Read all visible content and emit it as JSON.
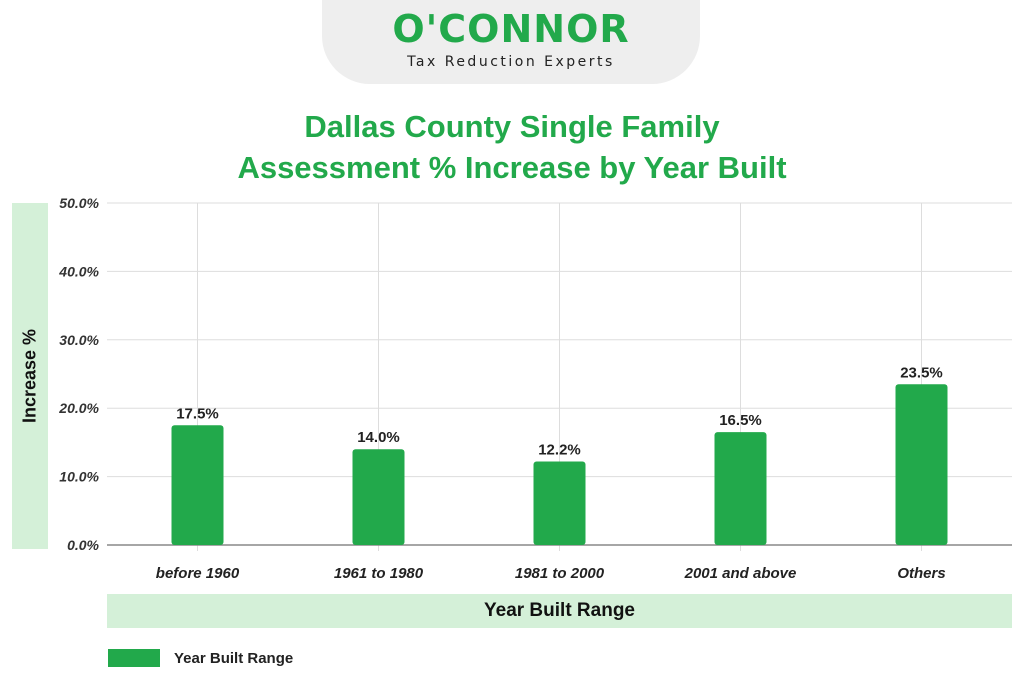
{
  "logo": {
    "brand": "O'CONNOR",
    "tagline": "Tax Reduction Experts"
  },
  "colors": {
    "accent": "#22a94b",
    "band": "#d4f0d8",
    "logo_bg": "#eeeeee"
  },
  "chart_data": {
    "type": "bar",
    "title_line1": "Dallas County Single Family",
    "title_line2": "Assessment % Increase by Year Built",
    "xlabel": "Year Built Range",
    "ylabel": "Increase %",
    "categories": [
      "before 1960",
      "1961 to 1980",
      "1981 to 2000",
      "2001 and above",
      "Others"
    ],
    "series": [
      {
        "name": "Year Built Range",
        "values": [
          17.5,
          14.0,
          12.2,
          16.5,
          23.5
        ],
        "labels": [
          "17.5%",
          "14.0%",
          "12.2%",
          "16.5%",
          "23.5%"
        ],
        "color": "#22a94b"
      }
    ],
    "yticks": [
      "0.0%",
      "10.0%",
      "20.0%",
      "30.0%",
      "40.0%",
      "50.0%"
    ],
    "ylim": [
      0,
      50
    ],
    "grid": true,
    "legend_position": "bottom-left"
  }
}
